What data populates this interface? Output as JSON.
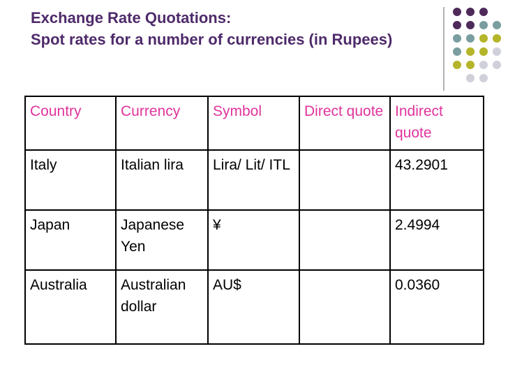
{
  "header": {
    "title": [
      "Exchange Rate Quotations:",
      "Spot rates for a number of currencies (in Rupees)"
    ]
  },
  "table": {
    "header": [
      "Country",
      "Currency",
      "Symbol",
      "Direct quote",
      "Indirect quote"
    ],
    "rows": [
      [
        "Italy",
        "Italian lira",
        "Lira/ Lit/ ITL",
        null,
        "43.2901"
      ],
      [
        "Japan",
        "Japanese Yen",
        "¥",
        null,
        "2.4994"
      ],
      [
        "Australia",
        "Australian dollar",
        "AU$",
        null,
        "0.0360"
      ]
    ]
  }
}
